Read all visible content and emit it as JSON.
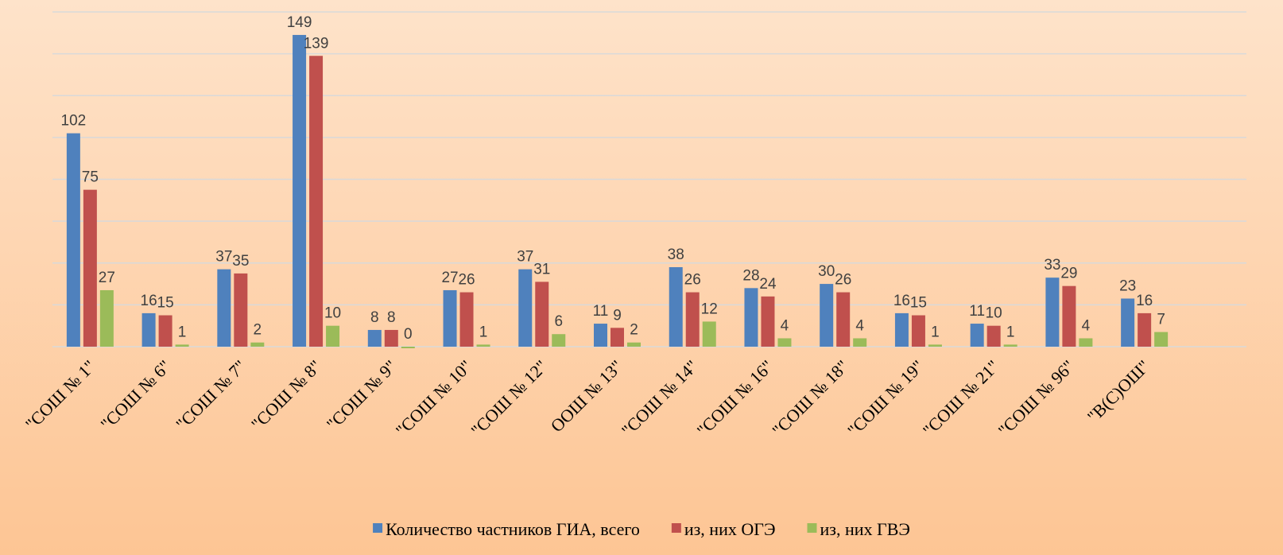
{
  "chart_data": {
    "type": "bar",
    "categories": [
      "\"СОШ № 1\"",
      "\"СОШ № 6\"",
      "\"СОШ № 7\"",
      "\"СОШ № 8\"",
      "\"СОШ № 9\"",
      "\"СОШ № 10\"",
      "\"СОШ № 12\"",
      "ООШ № 13\"",
      "\"СОШ № 14\"",
      "\"СОШ № 16\"",
      "\"СОШ № 18\"",
      "\"СОШ № 19\"",
      "\"СОШ № 21\"",
      "\"СОШ № 96\"",
      "\"В(С)ОШ\""
    ],
    "series": [
      {
        "name": "Количество частников ГИА, всего",
        "color": "#4f81bd",
        "values": [
          102,
          16,
          37,
          149,
          8,
          27,
          37,
          11,
          38,
          28,
          30,
          16,
          11,
          33,
          23
        ]
      },
      {
        "name": "из, них ОГЭ",
        "color": "#c0504d",
        "values": [
          75,
          15,
          35,
          139,
          8,
          26,
          31,
          9,
          26,
          24,
          26,
          15,
          10,
          29,
          16
        ]
      },
      {
        "name": "из, них ГВЭ",
        "color": "#9bbb59",
        "values": [
          27,
          1,
          2,
          10,
          0,
          1,
          6,
          2,
          12,
          4,
          4,
          1,
          1,
          4,
          7
        ]
      }
    ],
    "ylim": [
      0,
      160
    ],
    "yticks": [
      0,
      20,
      40,
      60,
      80,
      100,
      120,
      140,
      160
    ],
    "grid": true,
    "legend": "bottom"
  }
}
